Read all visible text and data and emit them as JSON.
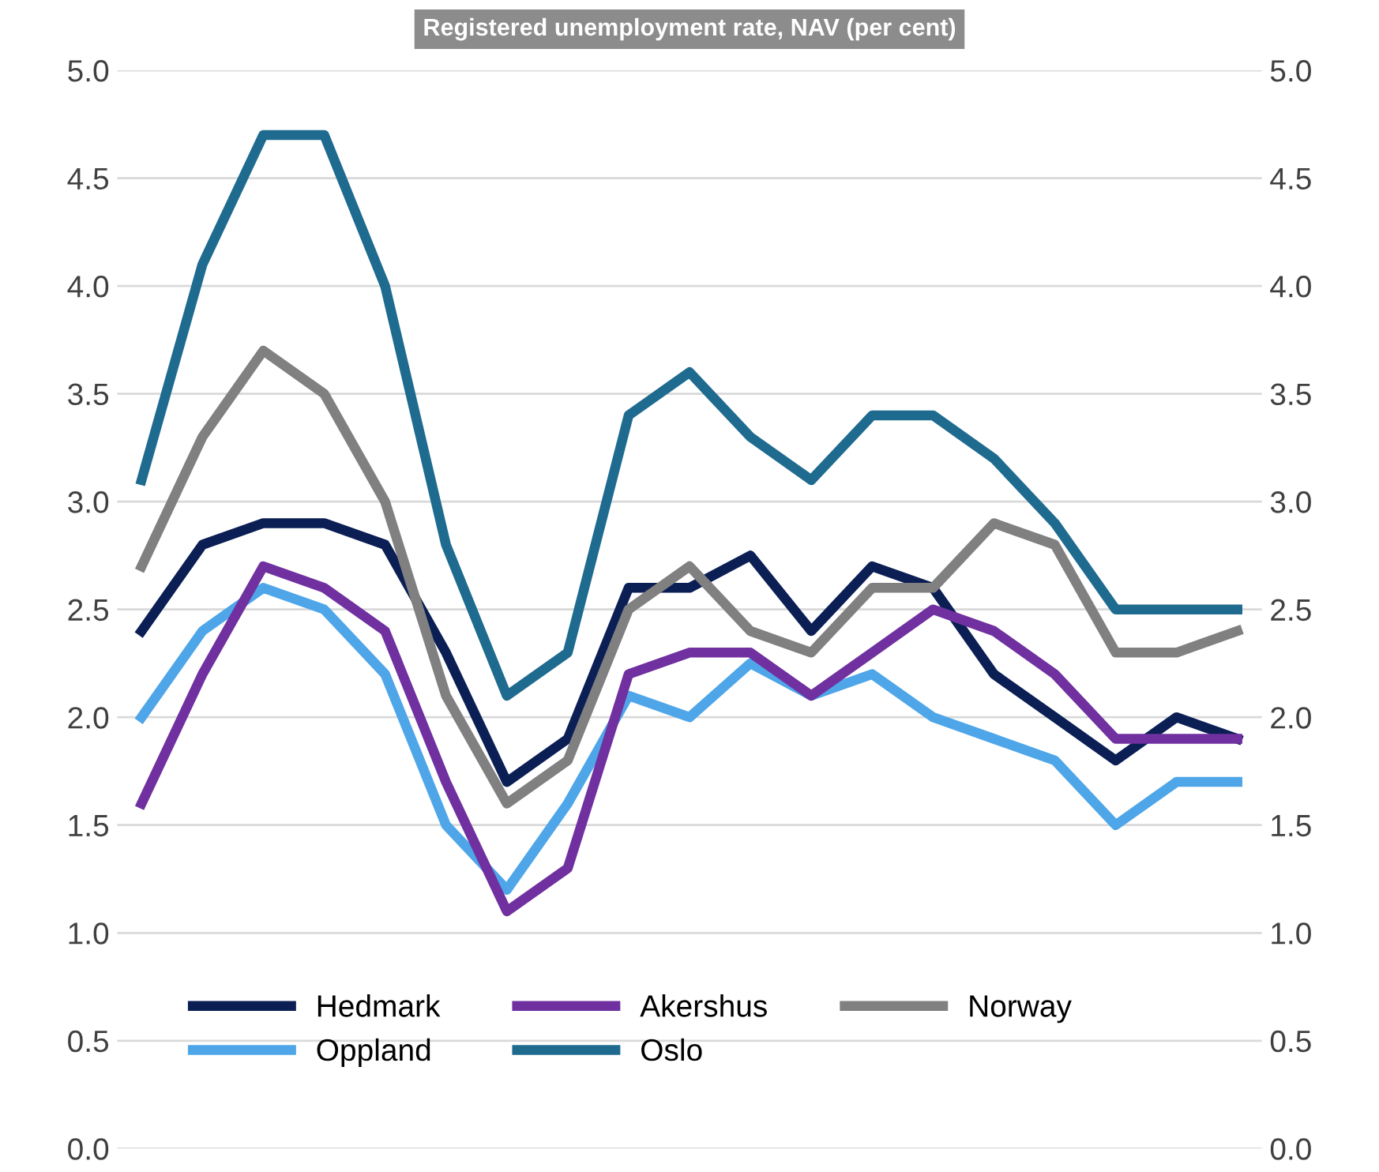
{
  "chart_data": {
    "type": "line",
    "title": "Registered unemployment rate, NAV (per cent)",
    "categories": [
      null,
      null,
      null,
      null,
      null,
      null,
      null,
      null,
      null,
      null,
      null,
      null,
      null,
      null,
      null,
      null,
      null,
      null,
      null
    ],
    "series": [
      {
        "name": "Hedmark",
        "color": "#0b1f55",
        "values": [
          2.4,
          2.8,
          2.9,
          2.9,
          2.8,
          2.3,
          1.7,
          1.9,
          2.6,
          2.6,
          2.75,
          2.4,
          2.7,
          2.6,
          2.2,
          2.0,
          1.8,
          2.0,
          1.9
        ]
      },
      {
        "name": "Oppland",
        "color": "#4ea6e8",
        "values": [
          2.0,
          2.4,
          2.6,
          2.5,
          2.2,
          1.5,
          1.2,
          1.6,
          2.1,
          2.0,
          2.25,
          2.1,
          2.2,
          2.0,
          1.9,
          1.8,
          1.5,
          1.7,
          1.7
        ]
      },
      {
        "name": "Akershus",
        "color": "#7030a0",
        "values": [
          1.6,
          2.2,
          2.7,
          2.6,
          2.4,
          1.7,
          1.1,
          1.3,
          2.2,
          2.3,
          2.3,
          2.1,
          2.3,
          2.5,
          2.4,
          2.2,
          1.9,
          1.9,
          1.9
        ]
      },
      {
        "name": "Oslo",
        "color": "#1f6b8f",
        "values": [
          3.1,
          4.1,
          4.7,
          4.7,
          4.0,
          2.8,
          2.1,
          2.3,
          3.4,
          3.6,
          3.3,
          3.1,
          3.4,
          3.4,
          3.2,
          2.9,
          2.5,
          2.5,
          2.5
        ]
      },
      {
        "name": "Norway",
        "color": "#808080",
        "values": [
          2.7,
          3.3,
          3.7,
          3.5,
          3.0,
          2.1,
          1.6,
          1.8,
          2.5,
          2.7,
          2.4,
          2.3,
          2.6,
          2.6,
          2.9,
          2.8,
          2.3,
          2.3,
          2.4
        ]
      }
    ],
    "ylim": [
      0,
      5
    ],
    "yticks": [
      {
        "value": 0,
        "label": "0.0"
      },
      {
        "value": 0.5,
        "label": "0.5"
      },
      {
        "value": 1,
        "label": "1.0"
      },
      {
        "value": 1.5,
        "label": "1.5"
      },
      {
        "value": 2,
        "label": "2.0"
      },
      {
        "value": 2.5,
        "label": "2.5"
      },
      {
        "value": 3,
        "label": "3.0"
      },
      {
        "value": 3.5,
        "label": "3.5"
      },
      {
        "value": 4,
        "label": "4.0"
      },
      {
        "value": 4.5,
        "label": "4.5"
      },
      {
        "value": 5,
        "label": "5.0"
      }
    ],
    "y2lim": [
      0,
      5
    ],
    "y2ticks": [
      {
        "value": 0,
        "label": "0.0"
      },
      {
        "value": 0.5,
        "label": "0.5"
      },
      {
        "value": 1,
        "label": "1.0"
      },
      {
        "value": 1.5,
        "label": "1.5"
      },
      {
        "value": 2,
        "label": "2.0"
      },
      {
        "value": 2.5,
        "label": "2.5"
      },
      {
        "value": 3,
        "label": "3.0"
      },
      {
        "value": 3.5,
        "label": "3.5"
      },
      {
        "value": 4,
        "label": "4.0"
      },
      {
        "value": 4.5,
        "label": "4.5"
      },
      {
        "value": 5,
        "label": "5.0"
      }
    ],
    "grid": "y",
    "legend": "bottom",
    "marker": "none",
    "line_style": "solid"
  }
}
